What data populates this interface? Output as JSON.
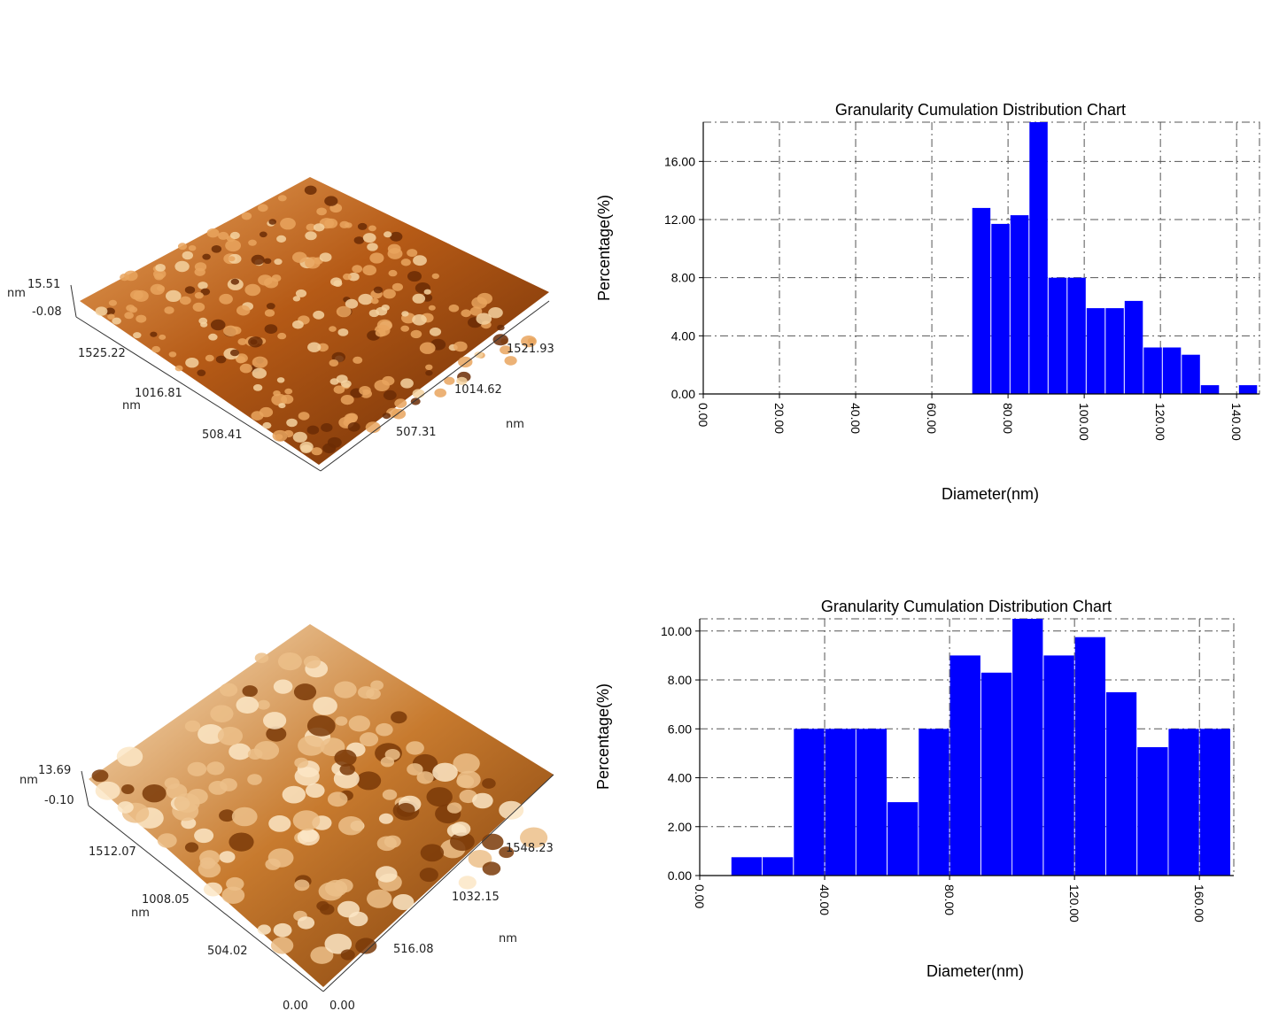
{
  "afm": [
    {
      "z_unit": "nm",
      "z_max": "15.51",
      "z_min": "-0.08",
      "left_ticks": [
        "1525.22",
        "1016.81",
        "508.41"
      ],
      "left_unit": "nm",
      "right_ticks": [
        "1521.93",
        "1014.62",
        "507.31"
      ],
      "right_unit": "nm",
      "origin_left": "",
      "origin_right": "",
      "colors": {
        "dark": "#6b2c05",
        "mid": "#b55a16",
        "light": "#e9a55e",
        "highlight": "#f5d2a0"
      }
    },
    {
      "z_unit": "nm",
      "z_max": "13.69",
      "z_min": "-0.10",
      "left_ticks": [
        "1512.07",
        "1008.05",
        "504.02"
      ],
      "left_unit": "nm",
      "right_ticks": [
        "1548.23",
        "1032.15",
        "516.08"
      ],
      "right_unit": "nm",
      "origin_left": "0.00",
      "origin_right": "0.00",
      "colors": {
        "dark": "#7a3a08",
        "mid": "#c77a2e",
        "light": "#ecc08a",
        "highlight": "#fbe6c6"
      }
    }
  ],
  "chart_data": [
    {
      "type": "bar",
      "title": "Granularity Cumulation Distribution  Chart",
      "xlabel": "Diameter(nm)",
      "ylabel": "Percentage(%)",
      "xlim": [
        0,
        146
      ],
      "ylim": [
        0,
        18.7
      ],
      "bin_width": 5,
      "x_ticks": [
        0,
        20,
        40,
        60,
        80,
        100,
        120,
        140
      ],
      "x_tick_labels": [
        "0.00",
        "20.00",
        "40.00",
        "60.00",
        "80.00",
        "100.00",
        "120.00",
        "140.00"
      ],
      "y_ticks": [
        0,
        4,
        8,
        12,
        16
      ],
      "y_tick_labels": [
        "0.00",
        "4.00",
        "8.00",
        "12.00",
        "16.00"
      ],
      "x": [
        73,
        78,
        83,
        88,
        93,
        98,
        103,
        108,
        113,
        118,
        123,
        128,
        133,
        138,
        143
      ],
      "values": [
        12.8,
        11.7,
        12.3,
        18.7,
        8.0,
        8.0,
        5.9,
        5.9,
        6.4,
        3.2,
        3.2,
        2.7,
        0.6,
        0.0,
        0.6
      ],
      "bar_color": "#0000ff",
      "grid": true
    },
    {
      "type": "bar",
      "title": "Granularity Cumulation Distribution  Chart",
      "xlabel": "Diameter(nm)",
      "ylabel": "Percentage(%)",
      "xlim": [
        0,
        171
      ],
      "ylim": [
        0,
        10.5
      ],
      "bin_width": 10,
      "x_ticks": [
        0,
        40,
        80,
        120,
        160
      ],
      "x_tick_labels": [
        "0.00",
        "40.00",
        "80.00",
        "120.00",
        "160.00"
      ],
      "y_ticks": [
        0,
        2,
        4,
        6,
        8,
        10
      ],
      "y_tick_labels": [
        "0.00",
        "2.00",
        "4.00",
        "6.00",
        "8.00",
        "10.00"
      ],
      "x": [
        15,
        25,
        35,
        45,
        55,
        65,
        75,
        85,
        95,
        105,
        115,
        125,
        135,
        145,
        155,
        165
      ],
      "values": [
        0.75,
        0.75,
        6.0,
        6.0,
        6.0,
        3.0,
        6.0,
        9.0,
        8.3,
        10.5,
        9.0,
        9.75,
        7.5,
        5.25,
        6.0,
        6.0
      ],
      "bar_color": "#0000ff",
      "grid": true
    }
  ]
}
